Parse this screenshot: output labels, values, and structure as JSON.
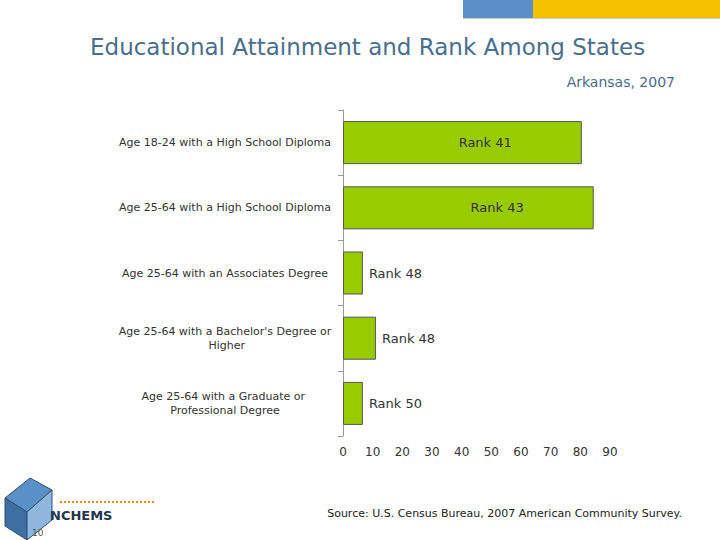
{
  "chart_data": {
    "type": "bar",
    "orientation": "horizontal",
    "title": "Educational Attainment and Rank Among States",
    "subtitle": "Arkansas, 2007",
    "categories": [
      "Age 18-24 with a High School Diploma",
      "Age 25-64 with a High School Diploma",
      "Age 25-64 with an Associates Degree",
      "Age 25-64 with a Bachelor's Degree or Higher",
      "Age 25-64 with a Graduate or Professional Degree"
    ],
    "values": [
      80.5,
      84.5,
      6.7,
      11.1,
      6.7
    ],
    "annotations": [
      "Rank 41",
      "Rank 43",
      "Rank 48",
      "Rank 48",
      "Rank 50"
    ],
    "color": "#99cc00",
    "xlim": [
      0,
      90
    ],
    "xticks": [
      0,
      10,
      20,
      30,
      40,
      50,
      60,
      70,
      80,
      90
    ],
    "grid": false,
    "source": "Source: U.S. Census Bureau, 2007 American Community Survey.",
    "logo": "NCHEMS",
    "page_number": "10"
  }
}
